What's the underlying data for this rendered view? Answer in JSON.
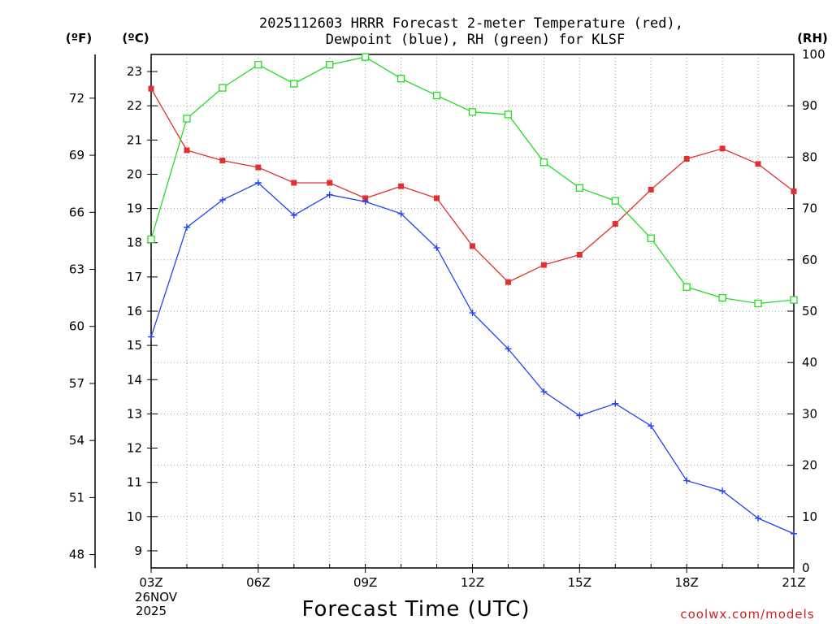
{
  "chart_data": {
    "type": "line",
    "title_line1": "2025112603 HRRR Forecast 2-meter Temperature (red),",
    "title_line2": "Dewpoint (blue), RH (green) for KLSF",
    "xlabel": "Forecast Time (UTC)",
    "date_label_line1": "26NOV",
    "date_label_line2": "2025",
    "credit": "coolwx.com/models",
    "units": {
      "fahrenheit": "(ºF)",
      "celsius": "(ºC)",
      "rh": "(RH)"
    },
    "x_hours": [
      3,
      4,
      5,
      6,
      7,
      8,
      9,
      10,
      11,
      12,
      13,
      14,
      15,
      16,
      17,
      18,
      19,
      20,
      21
    ],
    "x_ticks": [
      {
        "hour": 3,
        "label": "03Z"
      },
      {
        "hour": 6,
        "label": "06Z"
      },
      {
        "hour": 9,
        "label": "09Z"
      },
      {
        "hour": 12,
        "label": "12Z"
      },
      {
        "hour": 15,
        "label": "15Z"
      },
      {
        "hour": 18,
        "label": "18Z"
      },
      {
        "hour": 21,
        "label": "21Z"
      }
    ],
    "xlim": [
      3,
      21
    ],
    "celsius_range": [
      8.5,
      23.5
    ],
    "celsius_ticks": [
      "9",
      "10",
      "11",
      "12",
      "13",
      "14",
      "15",
      "16",
      "17",
      "18",
      "19",
      "20",
      "21",
      "22",
      "23"
    ],
    "fahrenheit_ticks": [
      "48",
      "51",
      "54",
      "57",
      "60",
      "63",
      "66",
      "69",
      "72"
    ],
    "rh_range": [
      0,
      100
    ],
    "rh_ticks": [
      "0",
      "10",
      "20",
      "30",
      "40",
      "50",
      "60",
      "70",
      "80",
      "90",
      "100"
    ],
    "series": [
      {
        "name": "Temperature",
        "axis": "celsius",
        "color": "#e03030",
        "marker": "filled-square",
        "values": [
          22.5,
          20.7,
          20.4,
          20.2,
          19.75,
          19.75,
          19.3,
          19.65,
          19.3,
          17.9,
          16.85,
          17.35,
          17.65,
          18.55,
          19.55,
          20.45,
          20.75,
          20.3,
          19.5
        ]
      },
      {
        "name": "Dewpoint",
        "axis": "celsius",
        "color": "#2244ee",
        "marker": "plus",
        "values": [
          15.25,
          18.45,
          19.25,
          19.75,
          18.8,
          19.4,
          19.2,
          18.85,
          17.85,
          15.95,
          14.9,
          13.65,
          12.95,
          13.3,
          12.65,
          11.05,
          10.75,
          9.95,
          9.5
        ]
      },
      {
        "name": "RH",
        "axis": "rh",
        "color": "#22dd22",
        "marker": "open-square",
        "values": [
          64,
          87.5,
          93.5,
          98,
          94.3,
          98,
          99.5,
          95.3,
          92,
          88.8,
          88.3,
          79,
          74,
          71.5,
          64.2,
          54.7,
          52.6,
          51.5,
          52.2
        ]
      }
    ]
  }
}
